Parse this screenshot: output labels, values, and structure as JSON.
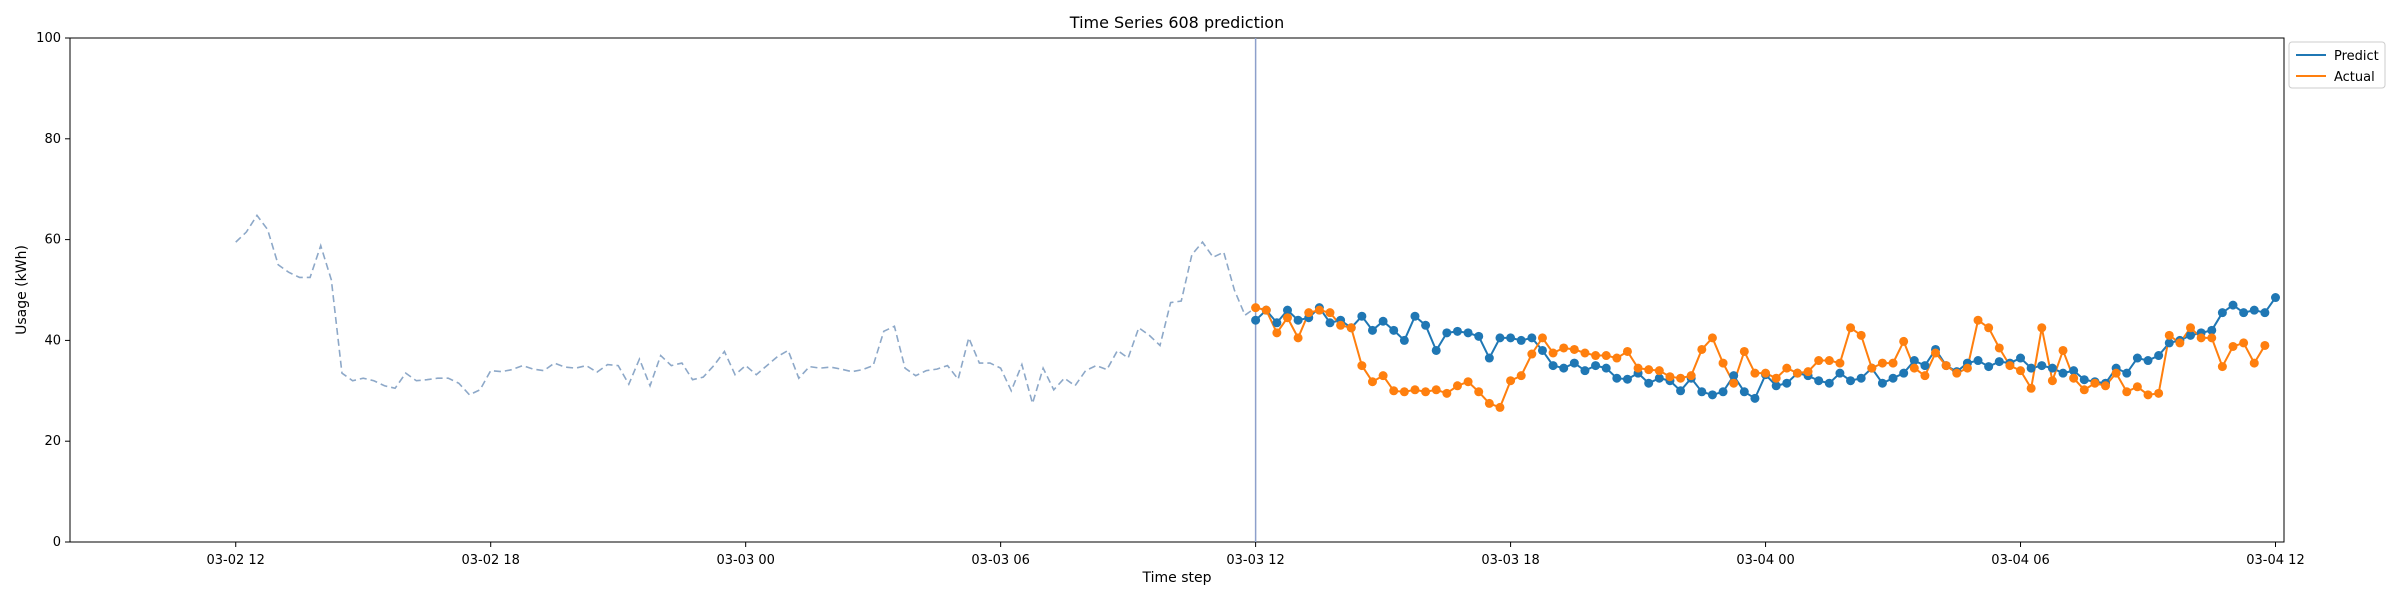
{
  "chart_data": {
    "type": "line",
    "title": "Time Series 608 prediction",
    "xlabel": "Time step",
    "ylabel": "Usage (kWh)",
    "ylim": [
      0,
      100
    ],
    "yticks": [
      0,
      20,
      40,
      60,
      80,
      100
    ],
    "x_unit": "hours since 03-02 12:00",
    "xlim": [
      -3.9,
      48.2
    ],
    "xticks": [
      {
        "label": "03-02 12",
        "x": 0
      },
      {
        "label": "03-02 18",
        "x": 6
      },
      {
        "label": "03-03 00",
        "x": 12
      },
      {
        "label": "03-03 06",
        "x": 18
      },
      {
        "label": "03-03 12",
        "x": 24
      },
      {
        "label": "03-03 18",
        "x": 30
      },
      {
        "label": "03-04 00",
        "x": 36
      },
      {
        "label": "03-04 06",
        "x": 42
      },
      {
        "label": "03-04 12",
        "x": 48
      }
    ],
    "grid": false,
    "legend_position": "top-right-outside",
    "forecast_start_x": 24,
    "history": {
      "color": "#8da8c8",
      "step": 0.25,
      "start_x": 0,
      "values": [
        59.5,
        61.5,
        64.8,
        62,
        55,
        53.5,
        52.5,
        52.5,
        58.8,
        52,
        33.5,
        32,
        32.5,
        32,
        31,
        30.5,
        33.5,
        32,
        32.2,
        32.5,
        32.5,
        31.5,
        29.2,
        30.2,
        34,
        33.8,
        34.2,
        35,
        34.3,
        34,
        35.5,
        34.7,
        34.5,
        35,
        33.7,
        35.2,
        35,
        31.3,
        36.3,
        31,
        37,
        35,
        35.5,
        32.2,
        32.7,
        35,
        37.8,
        33.2,
        35,
        33.2,
        35,
        36.8,
        38,
        32.5,
        34.8,
        34.5,
        34.7,
        34.3,
        33.8,
        34.2,
        35,
        41.8,
        42.8,
        34.5,
        33,
        34,
        34.3,
        35,
        32.3,
        40.5,
        35.5,
        35.5,
        34.5,
        30,
        35.2,
        27.5,
        34.5,
        30.2,
        32.5,
        31,
        34,
        35,
        34.2,
        38,
        36.5,
        42.5,
        41,
        39,
        47.5,
        47.8,
        57,
        59.5,
        56.5,
        57.5,
        50,
        45,
        46.5
      ]
    },
    "series": [
      {
        "name": "Predict",
        "color": "#1f77b4",
        "step": 0.25,
        "start_x": 24,
        "values": [
          44,
          46,
          43.5,
          46,
          44,
          44.5,
          46.5,
          43.5,
          44,
          42.5,
          44.8,
          42,
          43.8,
          42,
          40,
          44.8,
          43,
          38,
          41.5,
          41.8,
          41.5,
          40.8,
          36.5,
          40.5,
          40.5,
          40,
          40.5,
          38,
          35,
          34.5,
          35.5,
          34,
          35,
          34.5,
          32.5,
          32.3,
          33.5,
          31.5,
          32.5,
          32,
          30,
          32.5,
          29.8,
          29.2,
          29.8,
          33,
          29.8,
          28.5,
          33.2,
          31,
          31.5,
          33.5,
          33,
          32,
          31.5,
          33.5,
          32,
          32.5,
          34.5,
          31.5,
          32.5,
          33.5,
          36,
          35,
          38.2,
          35,
          33.8,
          35.5,
          36,
          34.8,
          35.8,
          35.5,
          36.5,
          34.5,
          35,
          34.5,
          33.5,
          34,
          32.2,
          31.8,
          31.5,
          34.5,
          33.5,
          36.5,
          36,
          37,
          39.5,
          40,
          41,
          41.5,
          42,
          45.5,
          47,
          45.5,
          46,
          45.5,
          48.5
        ]
      },
      {
        "name": "Actual",
        "color": "#ff7f0e",
        "step": 0.25,
        "start_x": 24,
        "values": [
          46.5,
          46,
          41.5,
          44.5,
          40.5,
          45.5,
          46,
          45.5,
          43,
          42.5,
          35,
          31.8,
          33,
          30,
          29.8,
          30.2,
          29.8,
          30.2,
          29.5,
          31,
          31.8,
          29.8,
          27.5,
          26.7,
          32,
          33,
          37.3,
          40.5,
          37.5,
          38.5,
          38.2,
          37.5,
          37,
          37,
          36.5,
          37.8,
          34.5,
          34.2,
          34,
          32.8,
          32.5,
          33,
          38.2,
          40.5,
          35.5,
          31.5,
          37.8,
          33.5,
          33.5,
          32.5,
          34.5,
          33.5,
          33.8,
          36,
          36,
          35.5,
          42.5,
          41,
          34.5,
          35.5,
          35.5,
          39.8,
          34.5,
          33,
          37.5,
          35,
          33.5,
          34.5,
          44,
          42.5,
          38.5,
          35,
          34,
          30.5,
          42.5,
          32,
          38,
          32.5,
          30.2,
          31.5,
          31,
          33.5,
          29.8,
          30.8,
          29.2,
          29.5,
          41,
          39.5,
          42.5,
          40.5,
          40.5,
          34.8,
          38.8,
          39.5,
          35.5,
          39
        ]
      }
    ]
  }
}
